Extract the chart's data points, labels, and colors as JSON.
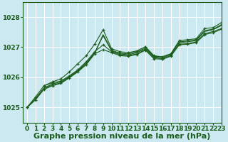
{
  "background_color": "#cce8f0",
  "plot_bg_color": "#cce8f0",
  "grid_color": "#ffffff",
  "line_color": "#1a5c1a",
  "marker_color": "#1a5c1a",
  "xlabel": "Graphe pression niveau de la mer (hPa)",
  "ylim": [
    1024.5,
    1028.5
  ],
  "xlim": [
    -0.5,
    23
  ],
  "yticks": [
    1025,
    1026,
    1027,
    1028
  ],
  "xticks": [
    0,
    1,
    2,
    3,
    4,
    5,
    6,
    7,
    8,
    9,
    10,
    11,
    12,
    13,
    14,
    15,
    16,
    17,
    18,
    19,
    20,
    21,
    22,
    23
  ],
  "series": [
    {
      "x": [
        0,
        1,
        2,
        3,
        4,
        5,
        6,
        7,
        8,
        9,
        10,
        11,
        12,
        13,
        14,
        15,
        16,
        17,
        18,
        19,
        20,
        21,
        22,
        23
      ],
      "y": [
        1025.0,
        1025.35,
        1025.72,
        1025.82,
        1025.88,
        1026.05,
        1026.25,
        1026.52,
        1026.85,
        1027.08,
        1026.85,
        1026.75,
        1026.72,
        1026.78,
        1026.92,
        1026.65,
        1026.62,
        1026.72,
        1027.1,
        1027.12,
        1027.18,
        1027.45,
        1027.52,
        1027.62
      ],
      "marker": true
    },
    {
      "x": [
        0,
        1,
        2,
        3,
        4,
        5,
        6,
        7,
        8,
        9,
        10,
        11,
        12,
        13,
        14,
        15,
        16,
        17,
        18,
        19,
        20,
        21,
        22,
        23
      ],
      "y": [
        1025.0,
        1025.3,
        1025.65,
        1025.78,
        1025.85,
        1026.02,
        1026.22,
        1026.48,
        1026.82,
        1027.38,
        1026.88,
        1026.78,
        1026.75,
        1026.82,
        1026.95,
        1026.68,
        1026.65,
        1026.75,
        1027.15,
        1027.18,
        1027.22,
        1027.52,
        1027.58,
        1027.72
      ],
      "marker": false
    },
    {
      "x": [
        0,
        1,
        2,
        3,
        4,
        5,
        6,
        7,
        8,
        9,
        10,
        11,
        12,
        13,
        14,
        15,
        16,
        17,
        18,
        19,
        20,
        21,
        22,
        23
      ],
      "y": [
        1025.0,
        1025.28,
        1025.62,
        1025.75,
        1025.82,
        1026.0,
        1026.2,
        1026.45,
        1026.8,
        1027.42,
        1026.9,
        1026.8,
        1026.78,
        1026.85,
        1026.98,
        1026.7,
        1026.68,
        1026.78,
        1027.18,
        1027.2,
        1027.25,
        1027.55,
        1027.6,
        1027.75
      ],
      "marker": false
    },
    {
      "x": [
        2,
        3,
        4,
        5,
        6,
        7,
        8,
        9,
        10,
        11,
        12,
        13,
        14,
        15,
        16,
        17,
        18,
        19,
        20,
        21,
        22,
        23
      ],
      "y": [
        1025.72,
        1025.85,
        1025.95,
        1026.18,
        1026.45,
        1026.72,
        1027.1,
        1027.58,
        1026.95,
        1026.85,
        1026.82,
        1026.88,
        1027.02,
        1026.72,
        1026.68,
        1026.78,
        1027.22,
        1027.25,
        1027.28,
        1027.62,
        1027.65,
        1027.82
      ],
      "marker": true
    },
    {
      "x": [
        0,
        1,
        2,
        3,
        4,
        5,
        6,
        7,
        8,
        9,
        10,
        11,
        12,
        13,
        14,
        15,
        16,
        17,
        18,
        19,
        20,
        21,
        22,
        23
      ],
      "y": [
        1025.0,
        1025.25,
        1025.6,
        1025.72,
        1025.8,
        1025.98,
        1026.18,
        1026.42,
        1026.78,
        1026.92,
        1026.82,
        1026.72,
        1026.7,
        1026.76,
        1026.9,
        1026.62,
        1026.6,
        1026.7,
        1027.08,
        1027.1,
        1027.15,
        1027.42,
        1027.48,
        1027.6
      ],
      "marker": true
    }
  ],
  "title_fontsize": 8,
  "tick_fontsize": 6.5
}
